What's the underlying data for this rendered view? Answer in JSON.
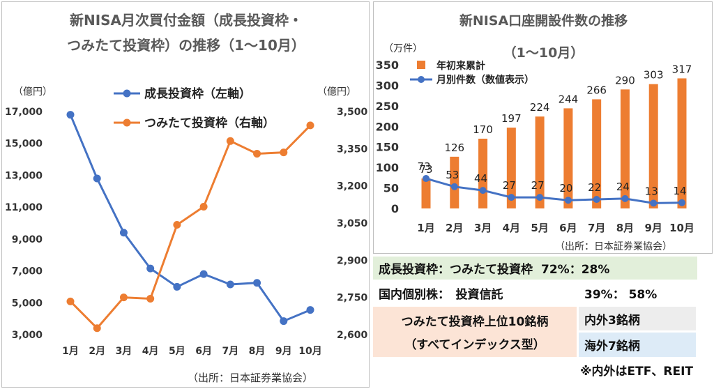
{
  "left_chart": {
    "title_line1": "新NISA月次買付金額（成長投資枠・",
    "title_line2": "つみたて投資枠）の推移（1～10月）",
    "unit_left": "（億円）",
    "unit_right": "（億円）",
    "source": "（出所：日本証券業協会）"
  },
  "right_chart": {
    "title_line1": "新NISA口座開設件数の推移",
    "title_line2": "（1～10月）",
    "unit": "（万件）",
    "source": "（出所：日本証券業協会）"
  },
  "table": {
    "row1_label": "成長投資枠：つみたて投資枠",
    "row1_value": "72%：28%",
    "row2_label": "国内個別株：　投資信託",
    "row2_value": "39%： 58%",
    "row3_label_line1": "つみたて投資枠上位10銘柄",
    "row3_label_line2": "（すべてインデックス型）",
    "row3_value1": "内外3銘柄",
    "row3_value2": "海外7銘柄",
    "note": "※内外はETF、REIT"
  },
  "colors": {
    "blue": "#4472c4",
    "orange": "#ed7d31",
    "green_bg": "#e2efda",
    "peach_bg": "#fce4d6",
    "grey_bg": "#ededed",
    "lightblue_bg": "#ddebf7"
  },
  "chart_data": [
    {
      "type": "line",
      "categories": [
        "1月",
        "2月",
        "3月",
        "4月",
        "5月",
        "6月",
        "7月",
        "8月",
        "9月",
        "10月"
      ],
      "series": [
        {
          "name": "成長投資枠（左軸）",
          "axis": "left",
          "color": "#4472c4",
          "values": [
            16800,
            12800,
            9400,
            7150,
            6000,
            6800,
            6150,
            6250,
            3850,
            4550
          ]
        },
        {
          "name": "つみたて投資枠（右軸）",
          "axis": "right",
          "color": "#ed7d31",
          "values": [
            2734,
            2626,
            2750,
            2745,
            3043,
            3116,
            3381,
            3330,
            3335,
            3444
          ]
        }
      ],
      "y_left": {
        "min": 3000,
        "max": 17000,
        "ticks": [
          "3,000",
          "5,000",
          "7,000",
          "9,000",
          "11,000",
          "13,000",
          "15,000",
          "17,000"
        ]
      },
      "y_right": {
        "min": 2600,
        "max": 3500,
        "ticks": [
          "2,600",
          "2,750",
          "2,900",
          "3,050",
          "3,200",
          "3,350",
          "3,500"
        ]
      },
      "legend": "top-center",
      "grid": false
    },
    {
      "type": "bar+line",
      "categories": [
        "1月",
        "2月",
        "3月",
        "4月",
        "5月",
        "6月",
        "7月",
        "8月",
        "9月",
        "10月"
      ],
      "series": [
        {
          "name": "年初来累計",
          "type": "bar",
          "color": "#ed7d31",
          "values": [
            73,
            126,
            170,
            197,
            224,
            244,
            266,
            290,
            303,
            317
          ]
        },
        {
          "name": "月別件数（数値表示）",
          "type": "line",
          "color": "#4472c4",
          "values": [
            73,
            53,
            44,
            27,
            27,
            20,
            22,
            24,
            13,
            14
          ]
        }
      ],
      "y": {
        "min": 0,
        "max": 350,
        "ticks": [
          "0",
          "50",
          "100",
          "150",
          "200",
          "250",
          "300",
          "350"
        ]
      },
      "legend": "top-left",
      "grid": false
    }
  ]
}
